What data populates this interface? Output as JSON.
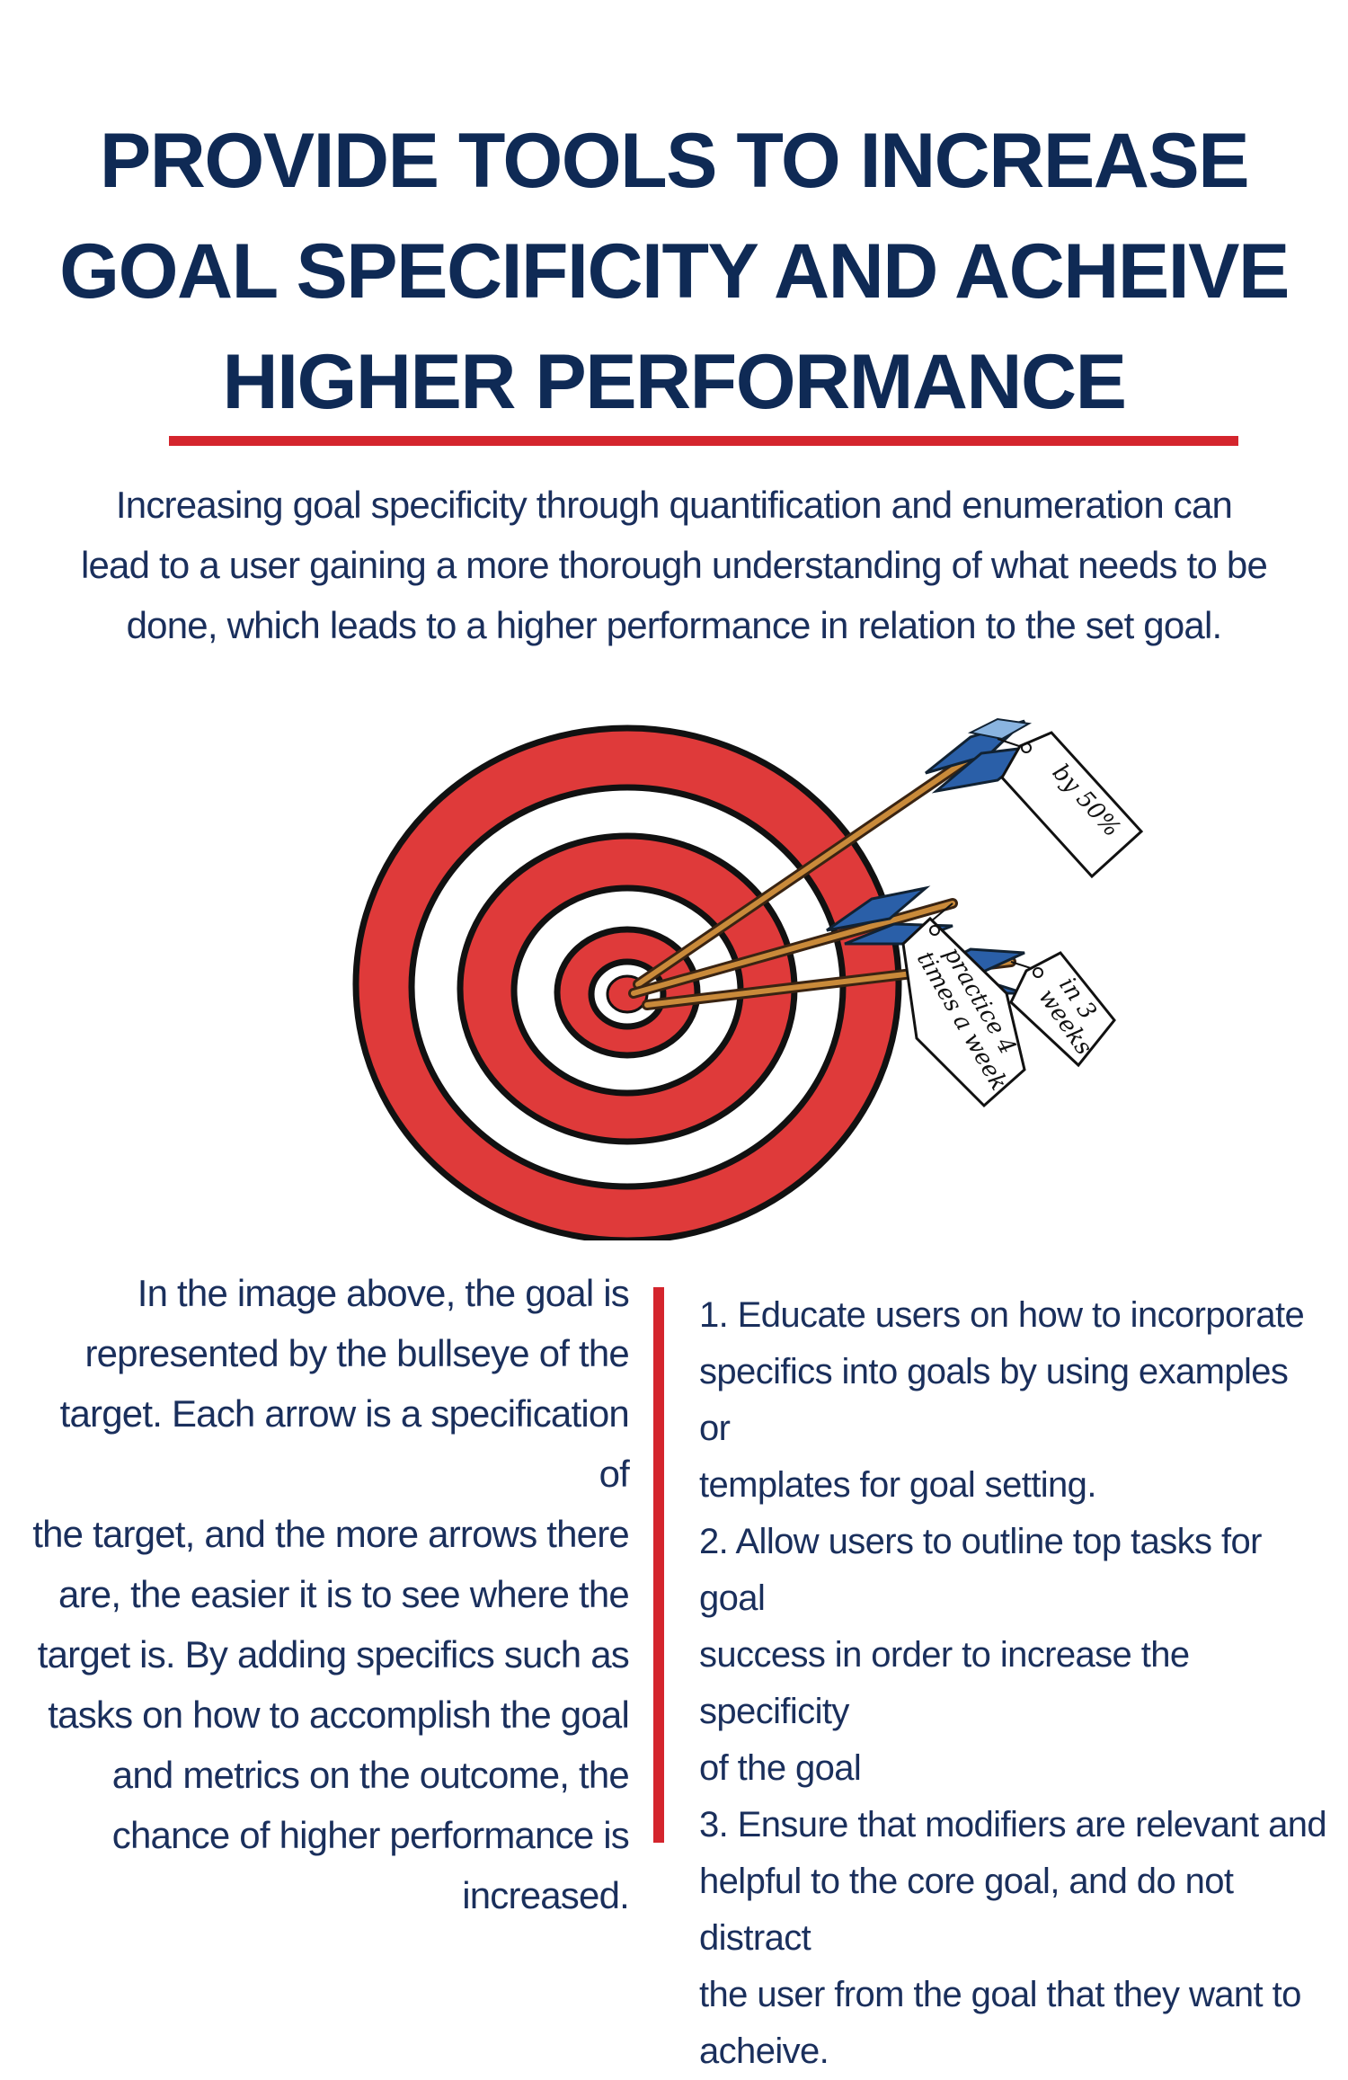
{
  "title": {
    "line1": "PROVIDE TOOLS TO INCREASE",
    "line2": "GOAL SPECIFICITY AND ACHEIVE",
    "line3": "HIGHER PERFORMANCE"
  },
  "intro": {
    "line1": "Increasing goal specificity through quantification and enumeration can",
    "line2": "lead to a user gaining a more thorough understanding of what needs to be",
    "line3": "done, which leads to a higher performance in relation to the set goal."
  },
  "illustration": {
    "tags": {
      "tag1": "by 50%",
      "tag2_line1": "practice 4",
      "tag2_line2": "times a week",
      "tag3_line1": "in 3",
      "tag3_line2": "weeks"
    }
  },
  "left_column": {
    "lines": [
      "In the image above, the goal is",
      "represented by the bullseye of the",
      "target. Each arrow is a specification of",
      "the target, and the more arrows there",
      "are, the easier it is to see where the",
      "target is. By adding specifics such as",
      "tasks on how to accomplish the goal",
      "and metrics on the outcome, the",
      "chance of higher performance is",
      "increased."
    ]
  },
  "right_column": {
    "lines": [
      "1. Educate users on how to incorporate",
      "specifics into goals by using examples or",
      "templates for goal setting.",
      "2. Allow users to outline top tasks for goal",
      "success in order to increase the specificity",
      "of the goal",
      "3. Ensure that modifiers are relevant and",
      "helpful to the core goal, and do not distract",
      "the user from the goal that they want to",
      "acheive."
    ]
  },
  "colors": {
    "navy": "#0f2a55",
    "red": "#d4252d",
    "target_red": "#df3a3a",
    "fletching_blue": "#2a5fa8"
  }
}
